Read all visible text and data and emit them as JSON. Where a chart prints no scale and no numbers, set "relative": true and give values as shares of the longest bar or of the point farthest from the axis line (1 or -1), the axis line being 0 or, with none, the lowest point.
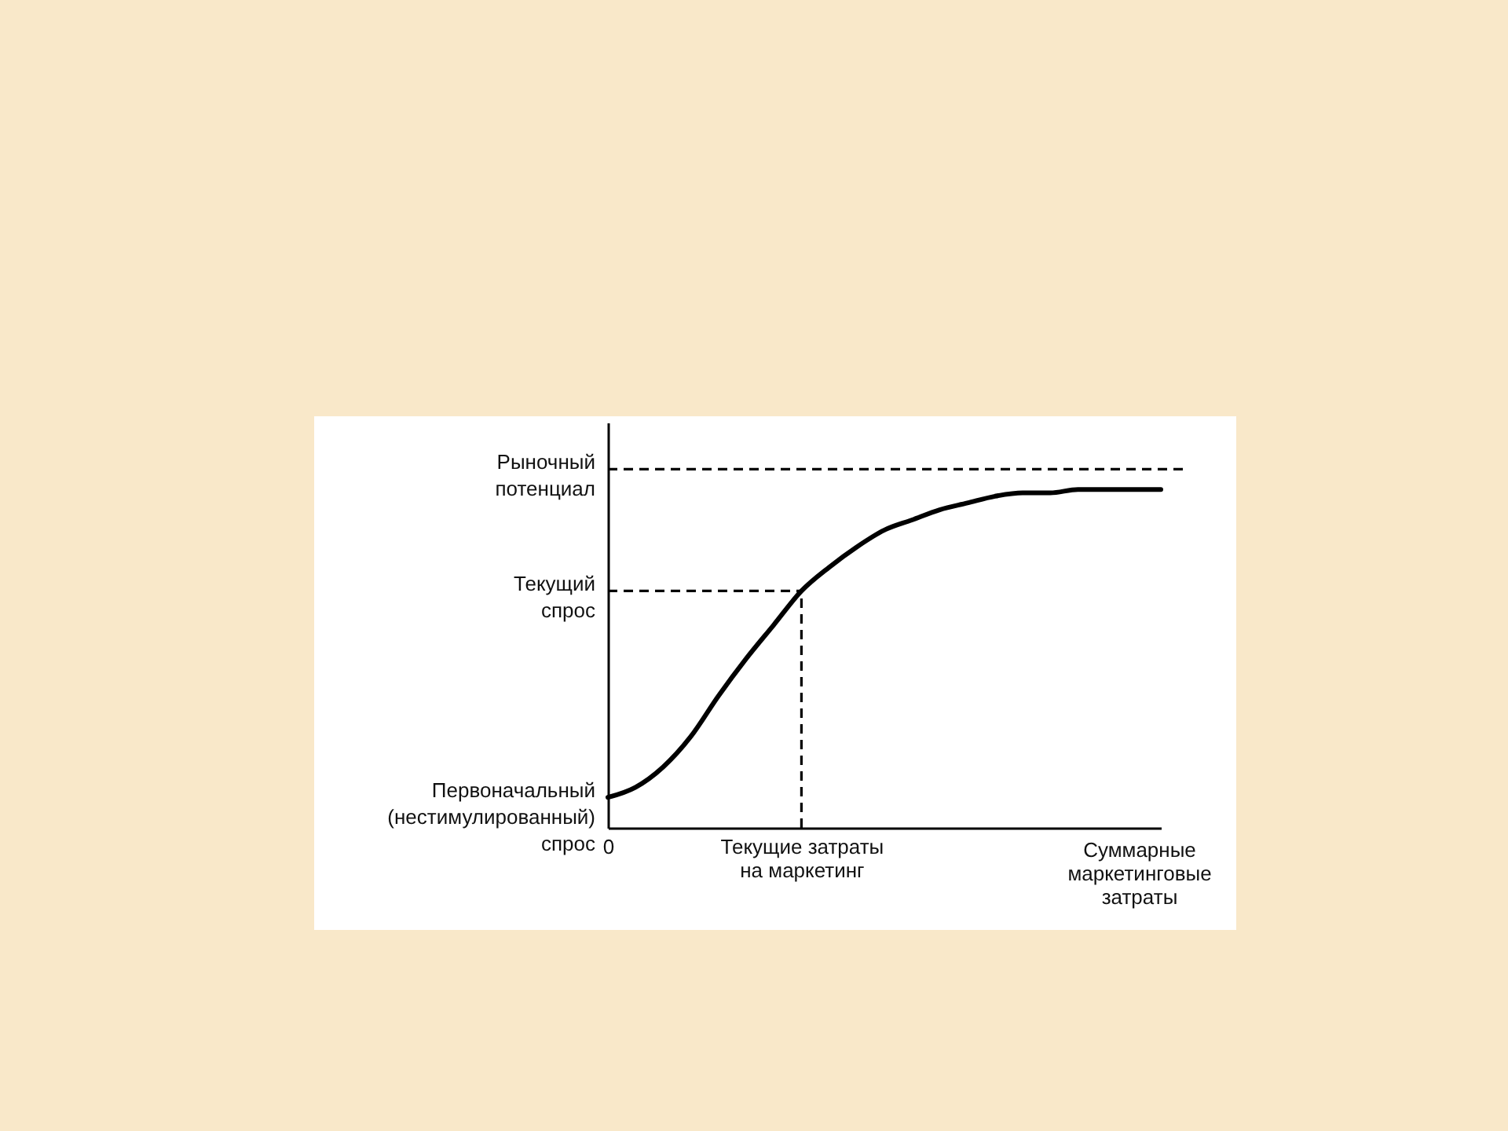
{
  "chart_data": {
    "type": "line",
    "relative": true,
    "line_style": "solid",
    "categories": [
      "0",
      null,
      null,
      null,
      null,
      null,
      null,
      "Текущие затраты на маркетинг",
      null,
      null,
      null,
      null,
      null,
      null,
      null,
      null,
      null,
      null,
      null,
      null,
      null
    ],
    "xlabel": "Суммарные маркетинговые затраты",
    "series": [
      {
        "color": "#000000",
        "values": [
          0.09,
          0.12,
          0.18,
          0.27,
          0.39,
          0.5,
          0.6,
          0.7,
          0.77,
          0.83,
          0.88,
          0.91,
          0.94,
          0.96,
          0.98,
          0.99,
          0.99,
          1,
          1,
          1,
          1
        ]
      }
    ],
    "ref_lines": [
      {
        "axis": "y",
        "value": 1.06,
        "label": "Рыночный потенциал",
        "line_style": "dashed"
      },
      {
        "axis": "y",
        "value": 0.7,
        "label": "Текущий спрос",
        "line_style": "dashed"
      },
      {
        "axis": "x",
        "value": "Текущие затраты на маркетинг",
        "line_style": "dashed"
      }
    ],
    "annotations": [
      {
        "text": "Первоначальный (нестимулированный) спрос",
        "x": "0",
        "y": 0.09
      }
    ]
  }
}
